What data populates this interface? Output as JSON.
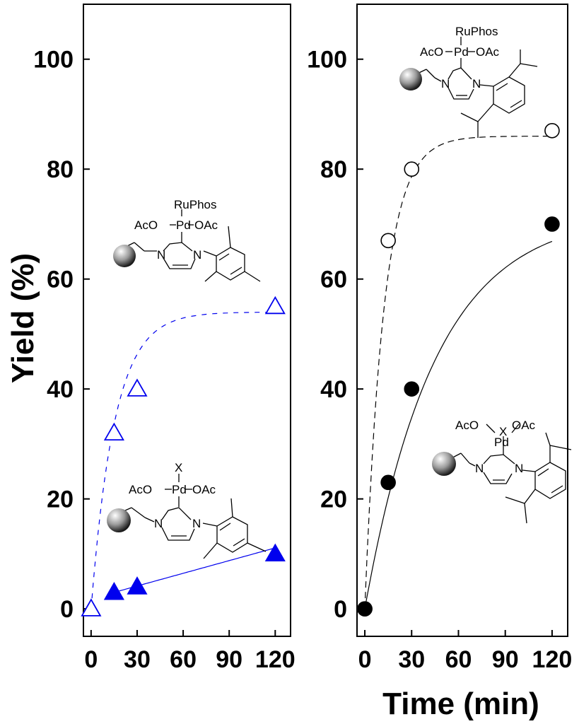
{
  "figure": {
    "ylabel": "Yield (%)",
    "xlabel": "Time (min)"
  },
  "chart_data": [
    {
      "type": "scatter",
      "panel": "left",
      "x_ticks": [
        0,
        30,
        60,
        90,
        120
      ],
      "y_ticks": [
        0,
        20,
        40,
        60,
        80,
        100
      ],
      "xlim": [
        -5,
        130
      ],
      "ylim": [
        -5,
        110
      ],
      "series": [
        {
          "marker": "triangle-open",
          "color": "#0000ee",
          "line": "dashed fit",
          "x": [
            0,
            15,
            30,
            120
          ],
          "y": [
            0,
            32,
            40,
            55
          ]
        },
        {
          "marker": "triangle-filled",
          "color": "#0000ee",
          "line": "solid fit",
          "x": [
            15,
            30,
            120
          ],
          "y": [
            3,
            4,
            10
          ]
        }
      ],
      "annotations": [
        {
          "ligand": "RuPhos",
          "left": "AcO",
          "metal": "Pd",
          "right": "OAc",
          "n": "N"
        },
        {
          "ligand": "X",
          "left": "AcO",
          "metal": "Pd",
          "right": "OAc",
          "n": "N"
        }
      ]
    },
    {
      "type": "scatter",
      "panel": "right",
      "x_ticks": [
        0,
        30,
        60,
        90,
        120
      ],
      "y_ticks": [
        0,
        20,
        40,
        60,
        80,
        100
      ],
      "xlim": [
        -5,
        130
      ],
      "ylim": [
        -5,
        110
      ],
      "series": [
        {
          "marker": "circle-open",
          "color": "#000000",
          "line": "dashed fit",
          "x": [
            0,
            15,
            30,
            120
          ],
          "y": [
            0,
            67,
            80,
            87
          ]
        },
        {
          "marker": "circle-filled",
          "color": "#000000",
          "line": "solid fit",
          "x": [
            0,
            15,
            30,
            120
          ],
          "y": [
            0,
            23,
            40,
            70
          ]
        }
      ],
      "annotations": [
        {
          "ligand": "RuPhos",
          "left": "AcO",
          "metal": "Pd",
          "right": "OAc",
          "n": "N"
        },
        {
          "ligand": "X",
          "left": "AcO",
          "metal": "Pd",
          "right": "OAc",
          "n": "N"
        }
      ]
    }
  ]
}
